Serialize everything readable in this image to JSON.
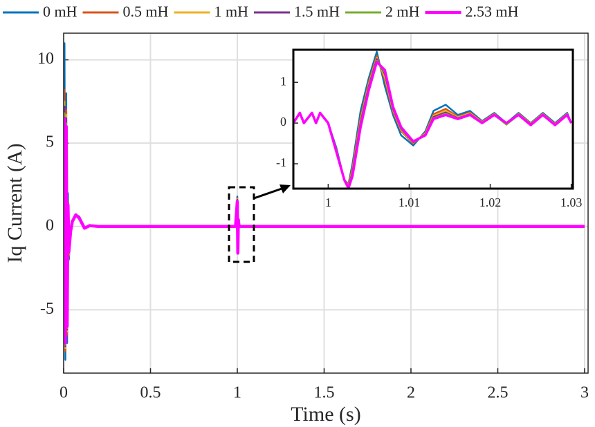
{
  "chart_data": [
    {
      "type": "line",
      "x_label": "Time (s)",
      "y_label": "Iq Current (A)",
      "x": [
        0,
        0.005,
        0.01,
        0.015,
        0.02,
        0.025,
        0.03,
        0.04,
        0.05,
        0.07,
        0.09,
        0.12,
        0.15,
        0.2,
        0.3,
        0.5,
        0.99,
        1.0,
        1.003,
        1.006,
        1.01,
        1.02,
        1.5,
        2,
        2.5,
        3
      ],
      "series": [
        {
          "name": "0 mH",
          "color": "#0072bd",
          "values": [
            0,
            11,
            -8,
            8,
            -7,
            2,
            -2,
            -0.5,
            0.3,
            0.7,
            0.6,
            -0.1,
            0.05,
            0,
            0,
            0,
            0,
            1.8,
            -1.5,
            0.5,
            0,
            0,
            0,
            0,
            0,
            0
          ]
        },
        {
          "name": "0.5 mH",
          "color": "#d95319",
          "values": [
            0,
            8.2,
            -7.5,
            7,
            -6.5,
            1.5,
            -1.8,
            -0.4,
            0.3,
            0.7,
            0.55,
            -0.1,
            0.05,
            0,
            0,
            0,
            0,
            1.7,
            -1.5,
            0.5,
            0,
            0,
            0,
            0,
            0,
            0
          ]
        },
        {
          "name": "1 mH",
          "color": "#edb120",
          "values": [
            0,
            7.5,
            -7.3,
            6.7,
            -6.3,
            1.4,
            -1.7,
            -0.4,
            0.3,
            0.7,
            0.55,
            -0.1,
            0.05,
            0,
            0,
            0,
            0,
            1.65,
            -1.5,
            0.45,
            0,
            0,
            0,
            0,
            0,
            0
          ]
        },
        {
          "name": "1.5 mH",
          "color": "#7e2f8e",
          "values": [
            0,
            7.2,
            -7.2,
            6.5,
            -6.2,
            1.4,
            -1.6,
            -0.35,
            0.3,
            0.7,
            0.5,
            -0.1,
            0.05,
            0,
            0,
            0,
            0,
            1.6,
            -1.55,
            0.45,
            0,
            0,
            0,
            0,
            0,
            0
          ]
        },
        {
          "name": "2 mH",
          "color": "#77ac30",
          "values": [
            0,
            6.8,
            -7.1,
            6.2,
            -6.1,
            1.3,
            -1.55,
            -0.3,
            0.3,
            0.7,
            0.5,
            -0.1,
            0.05,
            0,
            0,
            0,
            0,
            1.55,
            -1.55,
            0.4,
            0,
            0,
            0,
            0,
            0,
            0
          ]
        },
        {
          "name": "2.53 mH",
          "color": "#ff00ff",
          "values": [
            0,
            6.5,
            -7,
            6,
            -6,
            1.3,
            -1.5,
            -0.3,
            0.3,
            0.7,
            0.5,
            -0.1,
            0.05,
            0,
            0,
            0,
            0,
            1.5,
            -1.6,
            0.4,
            0,
            0,
            0,
            0,
            0,
            0
          ]
        }
      ],
      "xlim": [
        0,
        3.02
      ],
      "ylim": [
        -8.8,
        11.6
      ],
      "xticks": [
        0,
        0.5,
        1,
        1.5,
        2,
        2.5,
        3
      ],
      "yticks": [
        -5,
        0,
        5,
        10
      ],
      "grid": true,
      "legend": "top"
    },
    {
      "type": "line",
      "x": [
        0.9957,
        0.9965,
        0.997,
        0.998,
        0.9985,
        0.999,
        1.0,
        1.001,
        1.002,
        1.0025,
        1.003,
        1.004,
        1.005,
        1.006,
        1.007,
        1.008,
        1.009,
        1.0105,
        1.012,
        1.013,
        1.0145,
        1.016,
        1.0175,
        1.019,
        1.0205,
        1.022,
        1.0235,
        1.025,
        1.0265,
        1.028,
        1.0295,
        1.03
      ],
      "series": [
        {
          "color": "#0072bd",
          "values": [
            0,
            0.25,
            0,
            0.25,
            0,
            0.25,
            0,
            -0.6,
            -1.4,
            -1.5,
            -1,
            0.3,
            1.1,
            1.75,
            0.9,
            0.2,
            -0.3,
            -0.55,
            -0.2,
            0.3,
            0.45,
            0.2,
            0.3,
            0.05,
            0.25,
            0,
            0.25,
            0,
            0.25,
            0,
            0.25,
            0
          ]
        },
        {
          "color": "#d95319",
          "values": [
            0,
            0.25,
            0,
            0.25,
            0,
            0.25,
            0,
            -0.65,
            -1.4,
            -1.52,
            -1.1,
            0.15,
            1.0,
            1.65,
            1.05,
            0.28,
            -0.2,
            -0.5,
            -0.24,
            0.22,
            0.35,
            0.16,
            0.26,
            0.03,
            0.23,
            -0.01,
            0.23,
            -0.01,
            0.23,
            -0.02,
            0.23,
            0
          ]
        },
        {
          "color": "#edb120",
          "values": [
            0,
            0.25,
            0,
            0.25,
            0,
            0.25,
            0,
            -0.66,
            -1.4,
            -1.55,
            -1.15,
            0.08,
            0.95,
            1.6,
            1.12,
            0.32,
            -0.17,
            -0.48,
            -0.26,
            0.18,
            0.3,
            0.14,
            0.24,
            0.02,
            0.22,
            -0.02,
            0.22,
            -0.02,
            0.22,
            -0.03,
            0.22,
            0
          ]
        },
        {
          "color": "#7e2f8e",
          "values": [
            0,
            0.25,
            0,
            0.25,
            0,
            0.25,
            0,
            -0.68,
            -1.4,
            -1.57,
            -1.2,
            0.02,
            0.9,
            1.57,
            1.2,
            0.35,
            -0.14,
            -0.47,
            -0.28,
            0.15,
            0.26,
            0.12,
            0.22,
            0.01,
            0.21,
            -0.03,
            0.21,
            -0.03,
            0.21,
            -0.04,
            0.21,
            0
          ]
        },
        {
          "color": "#77ac30",
          "values": [
            0,
            0.25,
            0,
            0.25,
            0,
            0.25,
            0,
            -0.69,
            -1.4,
            -1.58,
            -1.25,
            -0.04,
            0.85,
            1.53,
            1.25,
            0.38,
            -0.12,
            -0.46,
            -0.29,
            0.12,
            0.23,
            0.11,
            0.21,
            0,
            0.2,
            -0.04,
            0.2,
            -0.04,
            0.2,
            -0.05,
            0.2,
            0
          ]
        },
        {
          "color": "#ff00ff",
          "values": [
            0,
            0.25,
            0,
            0.25,
            0,
            0.25,
            0,
            -0.7,
            -1.4,
            -1.6,
            -1.3,
            -0.1,
            0.8,
            1.5,
            1.3,
            0.4,
            -0.1,
            -0.45,
            -0.3,
            0.1,
            0.2,
            0.1,
            0.2,
            0,
            0.2,
            0,
            0.2,
            -0.05,
            0.2,
            -0.05,
            0.2,
            0
          ]
        }
      ],
      "xlim": [
        0.9957,
        1.0302
      ],
      "ylim": [
        -1.61,
        1.8
      ],
      "xticks": [
        1,
        1.01,
        1.02,
        1.03
      ],
      "yticks": [
        -1,
        0,
        1
      ],
      "grid": false
    }
  ]
}
